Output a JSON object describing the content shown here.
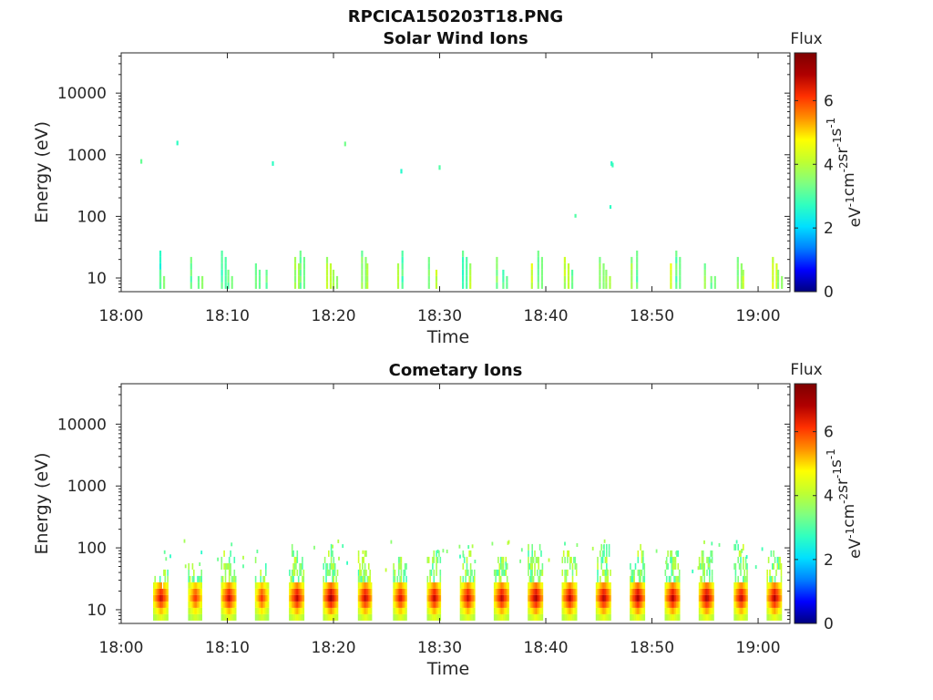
{
  "figure_title": "RPCICA150203T18.PNG",
  "colors": {
    "colormap": [
      "#00007f",
      "#0000ff",
      "#0080ff",
      "#00e0ff",
      "#30ffc0",
      "#80ff80",
      "#c0ff30",
      "#ffff00",
      "#ff9000",
      "#ff3000",
      "#b00000",
      "#7f0000"
    ],
    "axis": "#262626",
    "text": "#262626"
  },
  "chart_data": [
    {
      "type": "heatmap",
      "title": "Solar Wind Ions",
      "xlabel": "Time",
      "ylabel": "Energy (eV)",
      "yscale": "log",
      "xlim": [
        "18:00",
        "19:03"
      ],
      "ylim": [
        6,
        45000
      ],
      "xticks": [
        "18:00",
        "18:10",
        "18:20",
        "18:30",
        "18:40",
        "18:50",
        "19:00"
      ],
      "yticks": [
        "10",
        "100",
        "1000",
        "10000"
      ],
      "colorbar": {
        "label": "Flux",
        "units": "eV-1cm-2sr-1s-1",
        "ticks": [
          "0",
          "2",
          "4",
          "6"
        ],
        "range": [
          0,
          7.5
        ]
      },
      "grid": false,
      "data": [
        {
          "t": 1.8,
          "e": 780,
          "v": 3.2
        },
        {
          "t": 5.2,
          "e": 1550,
          "v": 2.7
        },
        {
          "t": 14.2,
          "e": 720,
          "v": 2.7
        },
        {
          "t": 21.0,
          "e": 1500,
          "v": 3.3
        },
        {
          "t": 26.3,
          "e": 540,
          "v": 2.6
        },
        {
          "t": 29.9,
          "e": 620,
          "v": 3.0
        },
        {
          "t": 42.7,
          "e": 102,
          "v": 3.0
        },
        {
          "t": 46.0,
          "e": 142,
          "v": 2.7
        },
        {
          "t": 46.1,
          "e": 720,
          "v": 2.6
        },
        {
          "t": 46.2,
          "e": 680,
          "v": 2.8
        },
        {
          "t": 3.6,
          "e": 25,
          "v": 3.2
        },
        {
          "t": 3.6,
          "e": 15,
          "v": 3.8
        },
        {
          "t": 6.5,
          "e": 20,
          "v": 3.6
        },
        {
          "t": 7.2,
          "e": 12,
          "v": 3.9
        },
        {
          "t": 9.4,
          "e": 26,
          "v": 3.3
        },
        {
          "t": 10.0,
          "e": 15,
          "v": 3.7
        },
        {
          "t": 12.6,
          "e": 18,
          "v": 3.5
        },
        {
          "t": 13.6,
          "e": 13,
          "v": 3.8
        },
        {
          "t": 16.3,
          "e": 20,
          "v": 4.2
        },
        {
          "t": 16.8,
          "e": 25,
          "v": 3.6
        },
        {
          "t": 19.3,
          "e": 22,
          "v": 4.4
        },
        {
          "t": 19.9,
          "e": 15,
          "v": 3.9
        },
        {
          "t": 22.6,
          "e": 25,
          "v": 3.8
        },
        {
          "t": 23.1,
          "e": 18,
          "v": 4.5
        },
        {
          "t": 26.0,
          "e": 18,
          "v": 4.4
        },
        {
          "t": 26.4,
          "e": 25,
          "v": 3.5
        },
        {
          "t": 28.9,
          "e": 22,
          "v": 3.9
        },
        {
          "t": 29.6,
          "e": 15,
          "v": 4.7
        },
        {
          "t": 32.1,
          "e": 25,
          "v": 3.3
        },
        {
          "t": 32.8,
          "e": 18,
          "v": 4.3
        },
        {
          "t": 35.3,
          "e": 20,
          "v": 3.9
        },
        {
          "t": 35.9,
          "e": 15,
          "v": 3.5
        },
        {
          "t": 38.6,
          "e": 18,
          "v": 4.8
        },
        {
          "t": 39.2,
          "e": 25,
          "v": 3.7
        },
        {
          "t": 41.7,
          "e": 20,
          "v": 4.4
        },
        {
          "t": 42.4,
          "e": 15,
          "v": 3.6
        },
        {
          "t": 45.0,
          "e": 22,
          "v": 3.8
        },
        {
          "t": 45.6,
          "e": 15,
          "v": 4.2
        },
        {
          "t": 48.0,
          "e": 20,
          "v": 4.1
        },
        {
          "t": 48.5,
          "e": 25,
          "v": 3.4
        },
        {
          "t": 51.7,
          "e": 18,
          "v": 4.9
        },
        {
          "t": 52.2,
          "e": 25,
          "v": 3.6
        },
        {
          "t": 54.9,
          "e": 18,
          "v": 4.0
        },
        {
          "t": 55.5,
          "e": 12,
          "v": 3.7
        },
        {
          "t": 58.0,
          "e": 20,
          "v": 3.9
        },
        {
          "t": 58.5,
          "e": 15,
          "v": 4.4
        },
        {
          "t": 61.3,
          "e": 20,
          "v": 4.6
        },
        {
          "t": 61.8,
          "e": 15,
          "v": 3.9
        }
      ]
    },
    {
      "type": "heatmap",
      "title": "Cometary Ions",
      "xlabel": "Time",
      "ylabel": "Energy (eV)",
      "yscale": "log",
      "xlim": [
        "18:00",
        "19:03"
      ],
      "ylim": [
        6,
        45000
      ],
      "xticks": [
        "18:00",
        "18:10",
        "18:20",
        "18:30",
        "18:40",
        "18:50",
        "19:00"
      ],
      "yticks": [
        "10",
        "100",
        "1000",
        "10000"
      ],
      "colorbar": {
        "label": "Flux",
        "units": "eV-1cm-2sr-1s-1",
        "ticks": [
          "0",
          "2",
          "4",
          "6"
        ],
        "range": [
          0,
          7.5
        ]
      },
      "grid": false,
      "bursts": [
        {
          "start": 3.0,
          "end": 4.4,
          "peak": 6.8,
          "top": 40
        },
        {
          "start": 6.3,
          "end": 7.6,
          "peak": 6.3,
          "top": 50
        },
        {
          "start": 9.4,
          "end": 10.8,
          "peak": 6.8,
          "top": 80
        },
        {
          "start": 12.6,
          "end": 13.8,
          "peak": 6.3,
          "top": 60
        },
        {
          "start": 15.8,
          "end": 17.2,
          "peak": 6.9,
          "top": 90
        },
        {
          "start": 19.0,
          "end": 20.4,
          "peak": 7.2,
          "top": 100
        },
        {
          "start": 22.3,
          "end": 23.6,
          "peak": 6.9,
          "top": 90
        },
        {
          "start": 25.6,
          "end": 26.9,
          "peak": 6.7,
          "top": 70
        },
        {
          "start": 28.8,
          "end": 30.1,
          "peak": 6.9,
          "top": 90
        },
        {
          "start": 31.9,
          "end": 33.3,
          "peak": 6.8,
          "top": 80
        },
        {
          "start": 35.1,
          "end": 36.5,
          "peak": 6.9,
          "top": 80
        },
        {
          "start": 38.3,
          "end": 39.7,
          "peak": 7.1,
          "top": 110
        },
        {
          "start": 41.5,
          "end": 42.9,
          "peak": 6.9,
          "top": 100
        },
        {
          "start": 44.7,
          "end": 46.1,
          "peak": 7.0,
          "top": 100
        },
        {
          "start": 47.9,
          "end": 49.3,
          "peak": 7.1,
          "top": 100
        },
        {
          "start": 51.2,
          "end": 52.6,
          "peak": 7.0,
          "top": 90
        },
        {
          "start": 54.4,
          "end": 55.8,
          "peak": 7.1,
          "top": 100
        },
        {
          "start": 57.7,
          "end": 59.0,
          "peak": 6.9,
          "top": 100
        },
        {
          "start": 60.8,
          "end": 62.2,
          "peak": 7.0,
          "top": 90
        }
      ]
    }
  ]
}
